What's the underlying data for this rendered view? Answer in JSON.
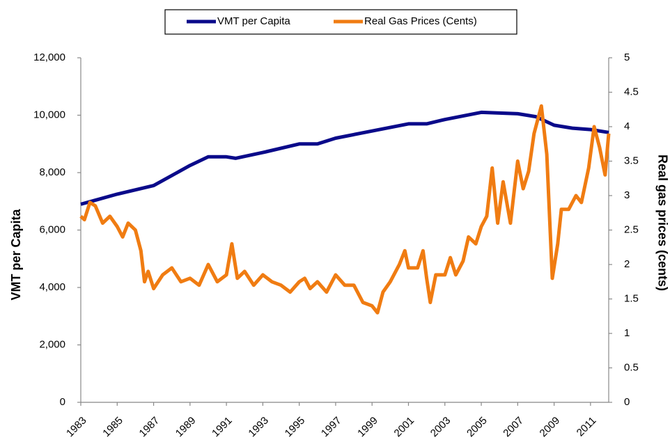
{
  "chart_data": {
    "type": "line",
    "y_label": "VMT per Capita",
    "y2_label": "Real gas prices (cents)",
    "xlim": [
      1983,
      2012
    ],
    "xticks": [
      1983,
      1985,
      1987,
      1989,
      1991,
      1993,
      1995,
      1997,
      1999,
      2001,
      2003,
      2005,
      2007,
      2009,
      2011
    ],
    "ylim": [
      0,
      12000
    ],
    "yticks": [
      0,
      {
        "value": 2000,
        "label": "2,000"
      },
      {
        "value": 4000,
        "label": "4,000"
      },
      {
        "value": 6000,
        "label": "6,000"
      },
      {
        "value": 8000,
        "label": "8,000"
      },
      {
        "value": 10000,
        "label": "10,000"
      },
      {
        "value": 12000,
        "label": "12,000"
      }
    ],
    "y2lim": [
      0,
      5
    ],
    "y2ticks": [
      0,
      0.5,
      1,
      1.5,
      2,
      2.5,
      3,
      3.5,
      4,
      4.5,
      5
    ],
    "legend": "top",
    "series": [
      {
        "name": "VMT per Capita",
        "color": "#0a0a8a",
        "axis": "y",
        "x": [
          1983,
          1985,
          1987,
          1989,
          1990,
          1991,
          1991.5,
          1993,
          1995,
          1996,
          1997,
          1999,
          2001,
          2002,
          2003,
          2005,
          2007,
          2008,
          2009,
          2010,
          2011,
          2012
        ],
        "values": [
          6900,
          7250,
          7550,
          8250,
          8550,
          8550,
          8500,
          8700,
          9000,
          9000,
          9200,
          9450,
          9700,
          9700,
          9850,
          10100,
          10050,
          9950,
          9650,
          9550,
          9500,
          9400
        ]
      },
      {
        "name": "Real Gas Prices (Cents)",
        "color": "#f07c12",
        "axis": "y2",
        "x": [
          1983.0,
          1983.2,
          1983.5,
          1983.8,
          1984.2,
          1984.6,
          1985.0,
          1985.3,
          1985.6,
          1986.0,
          1986.3,
          1986.5,
          1986.7,
          1987.0,
          1987.5,
          1988.0,
          1988.5,
          1989.0,
          1989.5,
          1990.0,
          1990.5,
          1991.0,
          1991.3,
          1991.6,
          1992.0,
          1992.5,
          1993.0,
          1993.5,
          1994.0,
          1994.5,
          1995.0,
          1995.3,
          1995.6,
          1996.0,
          1996.5,
          1997.0,
          1997.5,
          1998.0,
          1998.5,
          1999.0,
          1999.3,
          1999.6,
          2000.0,
          2000.5,
          2000.8,
          2001.0,
          2001.5,
          2001.8,
          2002.0,
          2002.2,
          2002.5,
          2003.0,
          2003.3,
          2003.6,
          2004.0,
          2004.3,
          2004.7,
          2005.0,
          2005.3,
          2005.6,
          2005.9,
          2006.2,
          2006.6,
          2007.0,
          2007.3,
          2007.6,
          2007.9,
          2008.3,
          2008.6,
          2008.9,
          2009.2,
          2009.4,
          2009.8,
          2010.2,
          2010.5,
          2010.9,
          2011.2,
          2011.5,
          2011.8,
          2012.0
        ],
        "values": [
          2.7,
          2.65,
          2.9,
          2.85,
          2.6,
          2.7,
          2.55,
          2.4,
          2.6,
          2.5,
          2.2,
          1.75,
          1.9,
          1.65,
          1.85,
          1.95,
          1.75,
          1.8,
          1.7,
          2.0,
          1.75,
          1.85,
          2.3,
          1.8,
          1.9,
          1.7,
          1.85,
          1.75,
          1.7,
          1.6,
          1.75,
          1.8,
          1.65,
          1.75,
          1.6,
          1.85,
          1.7,
          1.7,
          1.45,
          1.4,
          1.3,
          1.6,
          1.75,
          2.0,
          2.2,
          1.95,
          1.95,
          2.2,
          1.8,
          1.45,
          1.85,
          1.85,
          2.1,
          1.85,
          2.05,
          2.4,
          2.3,
          2.55,
          2.7,
          3.4,
          2.6,
          3.2,
          2.6,
          3.5,
          3.1,
          3.35,
          3.9,
          4.3,
          3.6,
          1.8,
          2.3,
          2.8,
          2.8,
          3.0,
          2.9,
          3.4,
          4.0,
          3.7,
          3.3,
          3.9
        ]
      }
    ]
  }
}
